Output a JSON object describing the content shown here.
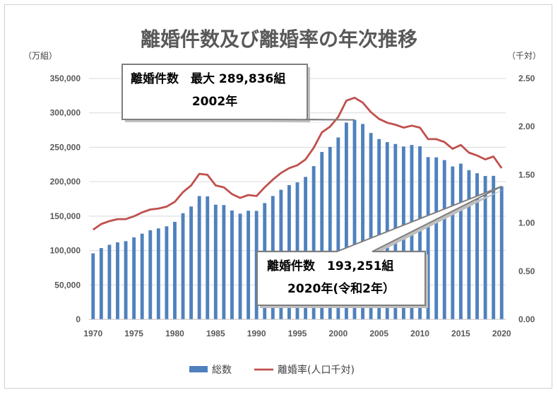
{
  "chart_data": {
    "type": "bar",
    "title": "離婚件数及び離婚率の年次推移",
    "y_left_unit": "（万組）",
    "y_right_unit": "（千対）",
    "x": [
      1970,
      1971,
      1972,
      1973,
      1974,
      1975,
      1976,
      1977,
      1978,
      1979,
      1980,
      1981,
      1982,
      1983,
      1984,
      1985,
      1986,
      1987,
      1988,
      1989,
      1990,
      1991,
      1992,
      1993,
      1994,
      1995,
      1996,
      1997,
      1998,
      1999,
      2000,
      2001,
      2002,
      2003,
      2004,
      2005,
      2006,
      2007,
      2008,
      2009,
      2010,
      2011,
      2012,
      2013,
      2014,
      2015,
      2016,
      2017,
      2018,
      2019,
      2020
    ],
    "x_ticks": [
      "1970",
      "1975",
      "1980",
      "1985",
      "1990",
      "1995",
      "2000",
      "2005",
      "2010",
      "2015",
      "2020"
    ],
    "y_left_ticks": [
      "0",
      "50,000",
      "100,000",
      "150,000",
      "200,000",
      "250,000",
      "300,000",
      "350,000"
    ],
    "y_right_ticks": [
      "0.00",
      "0.50",
      "1.00",
      "1.50",
      "2.00",
      "2.50"
    ],
    "ylim_left": [
      0,
      350000
    ],
    "ylim_right": [
      0,
      2.5
    ],
    "grid": true,
    "series": [
      {
        "name": "総数",
        "type": "bar",
        "axis": "left",
        "color": "#4f81bd",
        "values": [
          95937,
          103595,
          108382,
          111877,
          113622,
          119135,
          124512,
          129485,
          132146,
          135250,
          141689,
          154221,
          163980,
          179150,
          178746,
          166640,
          166054,
          158227,
          153600,
          157811,
          157608,
          168969,
          179191,
          188297,
          195106,
          199016,
          206955,
          222635,
          243183,
          250529,
          264246,
          285911,
          289836,
          283854,
          270804,
          261917,
          257475,
          254832,
          251136,
          253353,
          251378,
          235719,
          235406,
          231383,
          222107,
          226238,
          216798,
          212296,
          208333,
          208496,
          193251
        ]
      },
      {
        "name": "離婚率(人口千対)",
        "type": "line",
        "axis": "right",
        "color": "#c0504d",
        "values": [
          0.93,
          0.99,
          1.02,
          1.04,
          1.04,
          1.07,
          1.11,
          1.14,
          1.15,
          1.17,
          1.22,
          1.32,
          1.39,
          1.51,
          1.5,
          1.39,
          1.37,
          1.3,
          1.26,
          1.29,
          1.28,
          1.37,
          1.45,
          1.52,
          1.57,
          1.6,
          1.66,
          1.78,
          1.94,
          2.0,
          2.1,
          2.27,
          2.3,
          2.25,
          2.15,
          2.08,
          2.04,
          2.02,
          1.99,
          2.01,
          1.99,
          1.87,
          1.87,
          1.84,
          1.77,
          1.81,
          1.73,
          1.7,
          1.66,
          1.69,
          1.57
        ]
      }
    ],
    "annotations": [
      {
        "line1": "離婚件数　最大 289,836組",
        "line2": "2002年",
        "target_year": 2002,
        "target_value": 289836
      },
      {
        "line1": "離婚件数　193,251組",
        "line2": "2020年(令和2年）",
        "target_year": 2020,
        "target_value": 193251
      }
    ],
    "legend_placement": "bottom"
  }
}
